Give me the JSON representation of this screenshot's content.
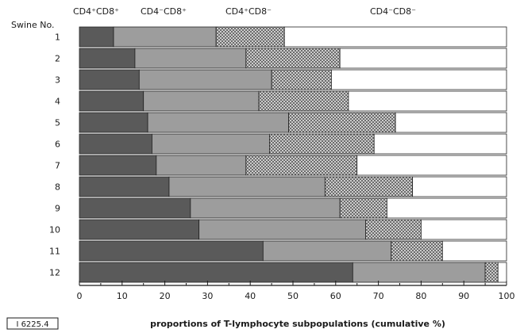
{
  "chart_data": {
    "type": "bar",
    "stacked": true,
    "orientation": "horizontal",
    "y_axis_title": "Swine No.",
    "xlabel": "proportions of T-lymphocyte subpopulations (cumulative %)",
    "xlim": [
      0,
      100
    ],
    "x_ticks": [
      "0",
      "10",
      "20",
      "30",
      "40",
      "50",
      "60",
      "70",
      "80",
      "90",
      "100"
    ],
    "categories": [
      "1",
      "2",
      "3",
      "4",
      "5",
      "6",
      "7",
      "8",
      "9",
      "10",
      "11",
      "12"
    ],
    "cumulative_boundaries": [
      [
        8,
        32,
        48,
        100
      ],
      [
        13,
        39,
        61,
        100
      ],
      [
        14,
        45,
        59,
        100
      ],
      [
        15,
        42,
        63,
        100
      ],
      [
        16,
        49,
        74,
        100
      ],
      [
        17,
        44.5,
        69,
        100
      ],
      [
        18,
        39,
        65,
        100
      ],
      [
        21,
        57.5,
        78,
        100
      ],
      [
        26,
        61,
        72,
        100
      ],
      [
        28,
        67,
        80,
        100
      ],
      [
        43,
        73,
        85,
        100
      ],
      [
        64,
        95,
        98,
        100
      ]
    ],
    "series": [
      {
        "name": "CD4⁺CD8⁺",
        "color": "#5a5a5a",
        "fill": "dark"
      },
      {
        "name": "CD4⁻CD8⁺",
        "color": "#9d9d9d",
        "fill": "gray"
      },
      {
        "name": "CD4⁺CD8⁻",
        "color": "#d4d4d4",
        "fill": "crosshatch"
      },
      {
        "name": "CD4⁻CD8⁻",
        "color": "#ffffff",
        "fill": "white"
      }
    ],
    "figure_id": "I 6225.4",
    "grid": false
  }
}
